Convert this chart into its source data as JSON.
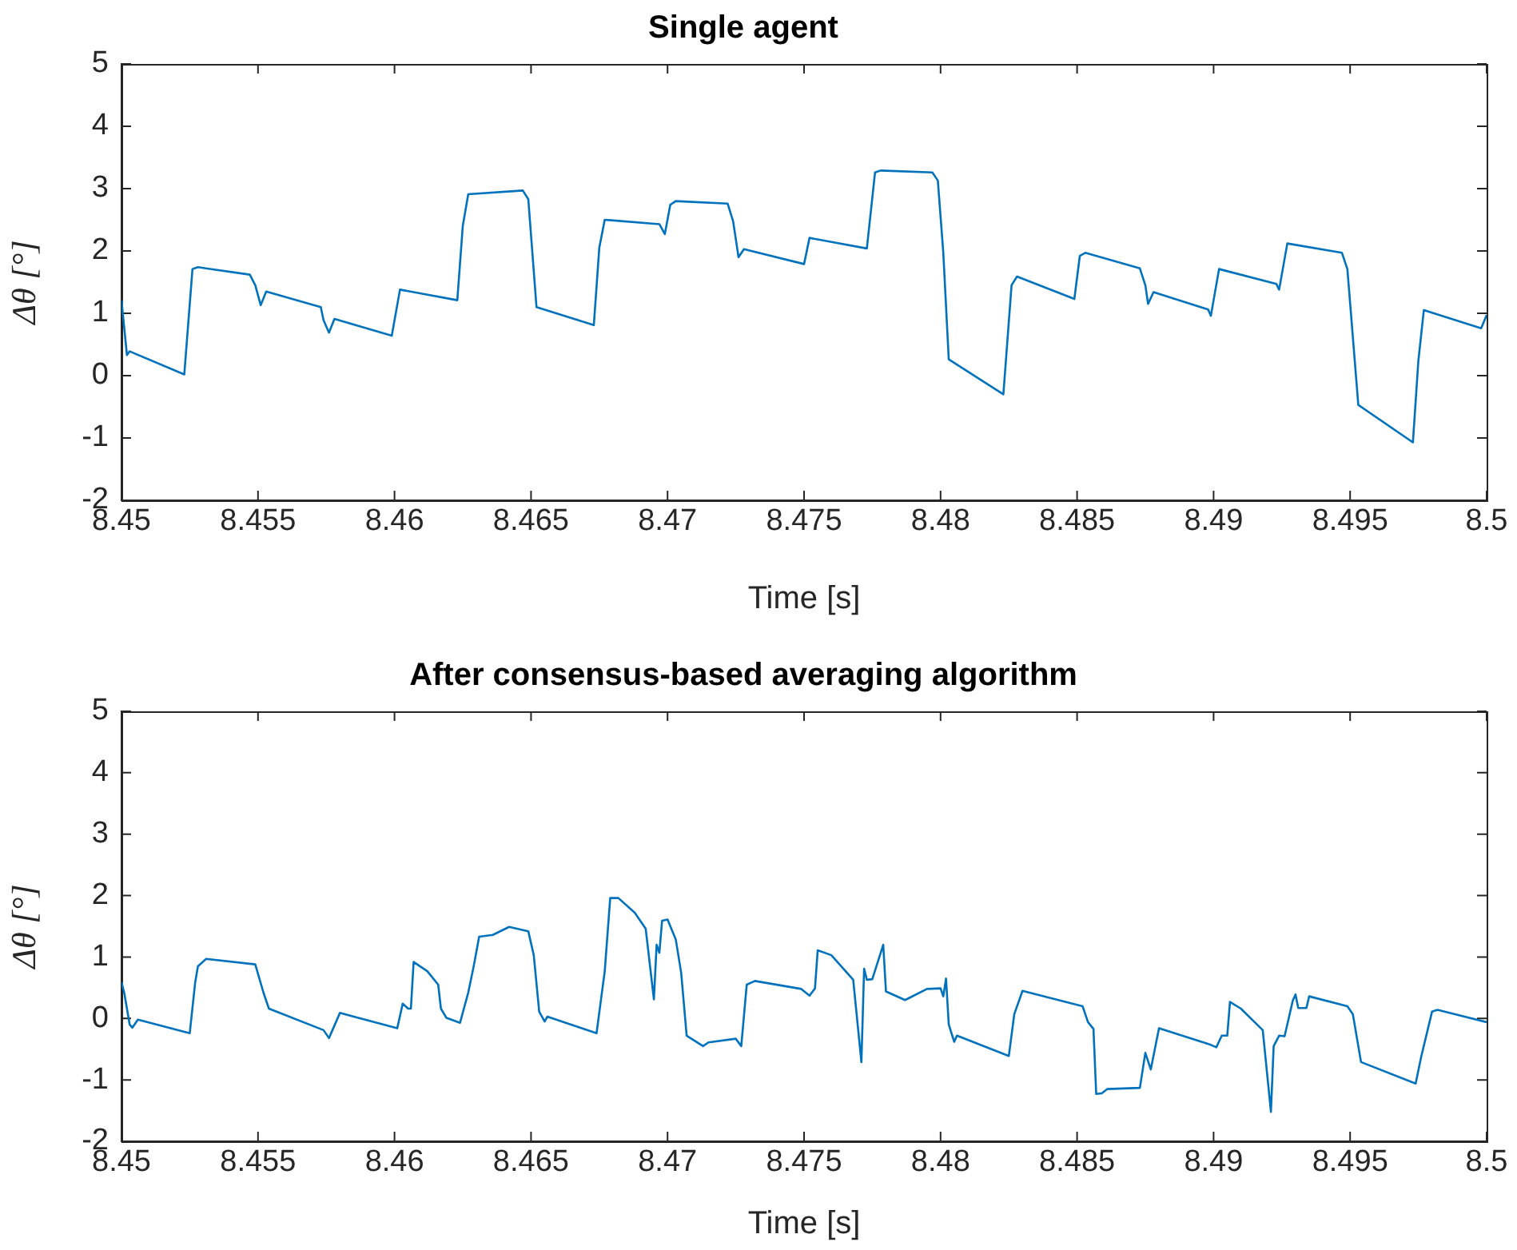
{
  "chart_data": [
    {
      "type": "line",
      "title": "Single agent",
      "xlabel": "Time [s]",
      "ylabel": "Δθ [°]",
      "x": [
        8.45,
        8.4502,
        8.4503,
        8.4523,
        8.4526,
        8.4528,
        8.4547,
        8.4549,
        8.4551,
        8.4553,
        8.4573,
        8.4574,
        8.4576,
        8.4578,
        8.4599,
        8.4602,
        8.4623,
        8.4625,
        8.4627,
        8.4647,
        8.4649,
        8.4652,
        8.4673,
        8.4675,
        8.4677,
        8.4697,
        8.4699,
        8.4701,
        8.4703,
        8.4722,
        8.4724,
        8.4726,
        8.4728,
        8.475,
        8.4752,
        8.4773,
        8.4776,
        8.4778,
        8.4797,
        8.4799,
        8.4801,
        8.4803,
        8.4823,
        8.4826,
        8.4828,
        8.4849,
        8.4851,
        8.4853,
        8.4873,
        8.4875,
        8.4876,
        8.4878,
        8.4898,
        8.4899,
        8.4902,
        8.4923,
        8.4924,
        8.4927,
        8.4947,
        8.4949,
        8.4953,
        8.4973,
        8.4975,
        8.4977,
        8.4998,
        8.5
      ],
      "series": [
        {
          "color": "#0072bd",
          "values": [
            1.21,
            0.33,
            0.39,
            0.02,
            1.71,
            1.74,
            1.62,
            1.45,
            1.13,
            1.35,
            1.1,
            0.89,
            0.69,
            0.91,
            0.64,
            1.38,
            1.21,
            2.4,
            2.91,
            2.97,
            2.83,
            1.1,
            0.81,
            2.05,
            2.5,
            2.43,
            2.27,
            2.74,
            2.8,
            2.76,
            2.48,
            1.9,
            2.03,
            1.79,
            2.21,
            2.04,
            3.26,
            3.29,
            3.26,
            3.13,
            1.97,
            0.26,
            -0.3,
            1.45,
            1.59,
            1.23,
            1.92,
            1.97,
            1.72,
            1.45,
            1.15,
            1.34,
            1.06,
            0.96,
            1.71,
            1.47,
            1.38,
            2.12,
            1.97,
            1.71,
            -0.47,
            -1.07,
            0.24,
            1.05,
            0.76,
            0.97
          ]
        }
      ],
      "xlim": [
        8.45,
        8.5
      ],
      "xticks": [
        8.45,
        8.455,
        8.46,
        8.465,
        8.47,
        8.475,
        8.48,
        8.485,
        8.49,
        8.495,
        8.5
      ],
      "ylim": [
        -2,
        5
      ],
      "yticks": [
        -2,
        -1,
        0,
        1,
        2,
        3,
        4,
        5
      ],
      "grid": false,
      "legend": false,
      "marker": "none",
      "line_style": "solid"
    },
    {
      "type": "line",
      "title": "After consensus-based averaging algorithm",
      "xlabel": "Time [s]",
      "ylabel": "Δθ [°]",
      "x": [
        8.45,
        8.4501,
        8.4503,
        8.4504,
        8.4506,
        8.4525,
        8.4527,
        8.4528,
        8.4531,
        8.4549,
        8.4552,
        8.4554,
        8.4574,
        8.4576,
        8.458,
        8.4601,
        8.4603,
        8.4605,
        8.4606,
        8.4607,
        8.4612,
        8.4616,
        8.4617,
        8.4619,
        8.4624,
        8.4627,
        8.4629,
        8.4631,
        8.4636,
        8.4642,
        8.4649,
        8.4651,
        8.4653,
        8.4655,
        8.4656,
        8.4674,
        8.4677,
        8.4679,
        8.4682,
        8.4688,
        8.4692,
        8.4695,
        8.4696,
        8.4697,
        8.4698,
        8.47,
        8.4703,
        8.4705,
        8.4707,
        8.4713,
        8.4715,
        8.4725,
        8.4727,
        8.4729,
        8.4732,
        8.4749,
        8.4752,
        8.4754,
        8.4755,
        8.476,
        8.4768,
        8.4771,
        8.4772,
        8.4773,
        8.4775,
        8.4779,
        8.478,
        8.4787,
        8.4795,
        8.48,
        8.4801,
        8.4802,
        8.4803,
        8.4805,
        8.4806,
        8.4825,
        8.4827,
        8.483,
        8.4852,
        8.4854,
        8.4856,
        8.4857,
        8.4859,
        8.4861,
        8.4873,
        8.4875,
        8.4877,
        8.488,
        8.4899,
        8.4901,
        8.4903,
        8.4905,
        8.4906,
        8.491,
        8.4918,
        8.4921,
        8.4922,
        8.4924,
        8.4926,
        8.4929,
        8.493,
        8.4931,
        8.4934,
        8.4935,
        8.4949,
        8.4951,
        8.4954,
        8.4974,
        8.4976,
        8.498,
        8.4982,
        8.5
      ],
      "series": [
        {
          "color": "#0072bd",
          "values": [
            0.59,
            0.42,
            -0.1,
            -0.15,
            -0.02,
            -0.24,
            0.59,
            0.85,
            0.97,
            0.88,
            0.42,
            0.16,
            -0.19,
            -0.32,
            0.09,
            -0.16,
            0.24,
            0.16,
            0.16,
            0.92,
            0.77,
            0.55,
            0.16,
            0.01,
            -0.07,
            0.42,
            0.85,
            1.33,
            1.36,
            1.49,
            1.42,
            1.03,
            0.11,
            -0.05,
            0.03,
            -0.24,
            0.77,
            1.96,
            1.96,
            1.72,
            1.46,
            0.31,
            1.2,
            1.07,
            1.59,
            1.61,
            1.29,
            0.74,
            -0.28,
            -0.45,
            -0.39,
            -0.33,
            -0.45,
            0.55,
            0.61,
            0.48,
            0.37,
            0.49,
            1.11,
            1.03,
            0.63,
            -0.71,
            0.81,
            0.63,
            0.64,
            1.2,
            0.44,
            0.3,
            0.48,
            0.49,
            0.36,
            0.65,
            -0.1,
            -0.38,
            -0.28,
            -0.61,
            0.07,
            0.45,
            0.2,
            -0.06,
            -0.17,
            -1.23,
            -1.22,
            -1.15,
            -1.13,
            -0.56,
            -0.83,
            -0.16,
            -0.43,
            -0.47,
            -0.28,
            -0.28,
            0.27,
            0.16,
            -0.19,
            -1.52,
            -0.45,
            -0.28,
            -0.29,
            0.29,
            0.39,
            0.17,
            0.17,
            0.36,
            0.2,
            0.07,
            -0.71,
            -1.06,
            -0.63,
            0.11,
            0.14,
            -0.06
          ]
        }
      ],
      "xlim": [
        8.45,
        8.5
      ],
      "xticks": [
        8.45,
        8.455,
        8.46,
        8.465,
        8.47,
        8.475,
        8.48,
        8.485,
        8.49,
        8.495,
        8.5
      ],
      "ylim": [
        -2,
        5
      ],
      "yticks": [
        -2,
        -1,
        0,
        1,
        2,
        3,
        4,
        5
      ],
      "grid": false,
      "legend": false,
      "marker": "none",
      "line_style": "solid"
    }
  ]
}
